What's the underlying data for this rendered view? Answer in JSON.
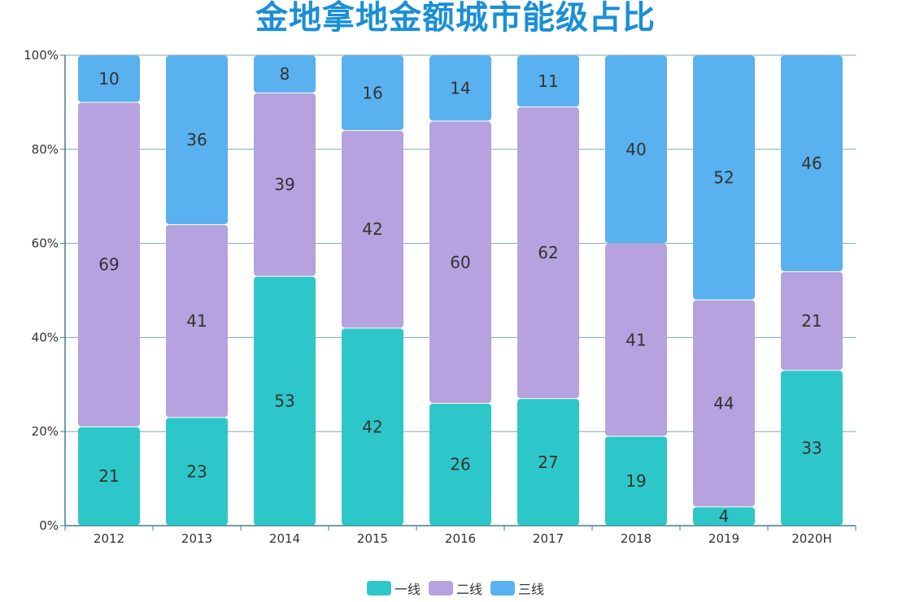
{
  "chart_data": {
    "type": "bar",
    "stacked": true,
    "percent_stacked": true,
    "title": "金地拿地金额城市能级占比",
    "categories": [
      "2012",
      "2013",
      "2014",
      "2015",
      "2016",
      "2017",
      "2018",
      "2019",
      "2020H"
    ],
    "series": [
      {
        "name": "一线",
        "color": "#2ec7c9",
        "values": [
          21,
          23,
          53,
          42,
          26,
          27,
          19,
          4,
          33
        ]
      },
      {
        "name": "二线",
        "color": "#b6a2de",
        "values": [
          69,
          41,
          39,
          42,
          60,
          62,
          41,
          44,
          21
        ]
      },
      {
        "name": "三线",
        "color": "#5ab1ef",
        "values": [
          10,
          36,
          8,
          16,
          14,
          11,
          40,
          52,
          46
        ]
      }
    ],
    "yticks": [
      "0%",
      "20%",
      "40%",
      "60%",
      "80%",
      "100%"
    ],
    "ylim": [
      0,
      100
    ],
    "grid": true,
    "legend_position": "bottom"
  }
}
